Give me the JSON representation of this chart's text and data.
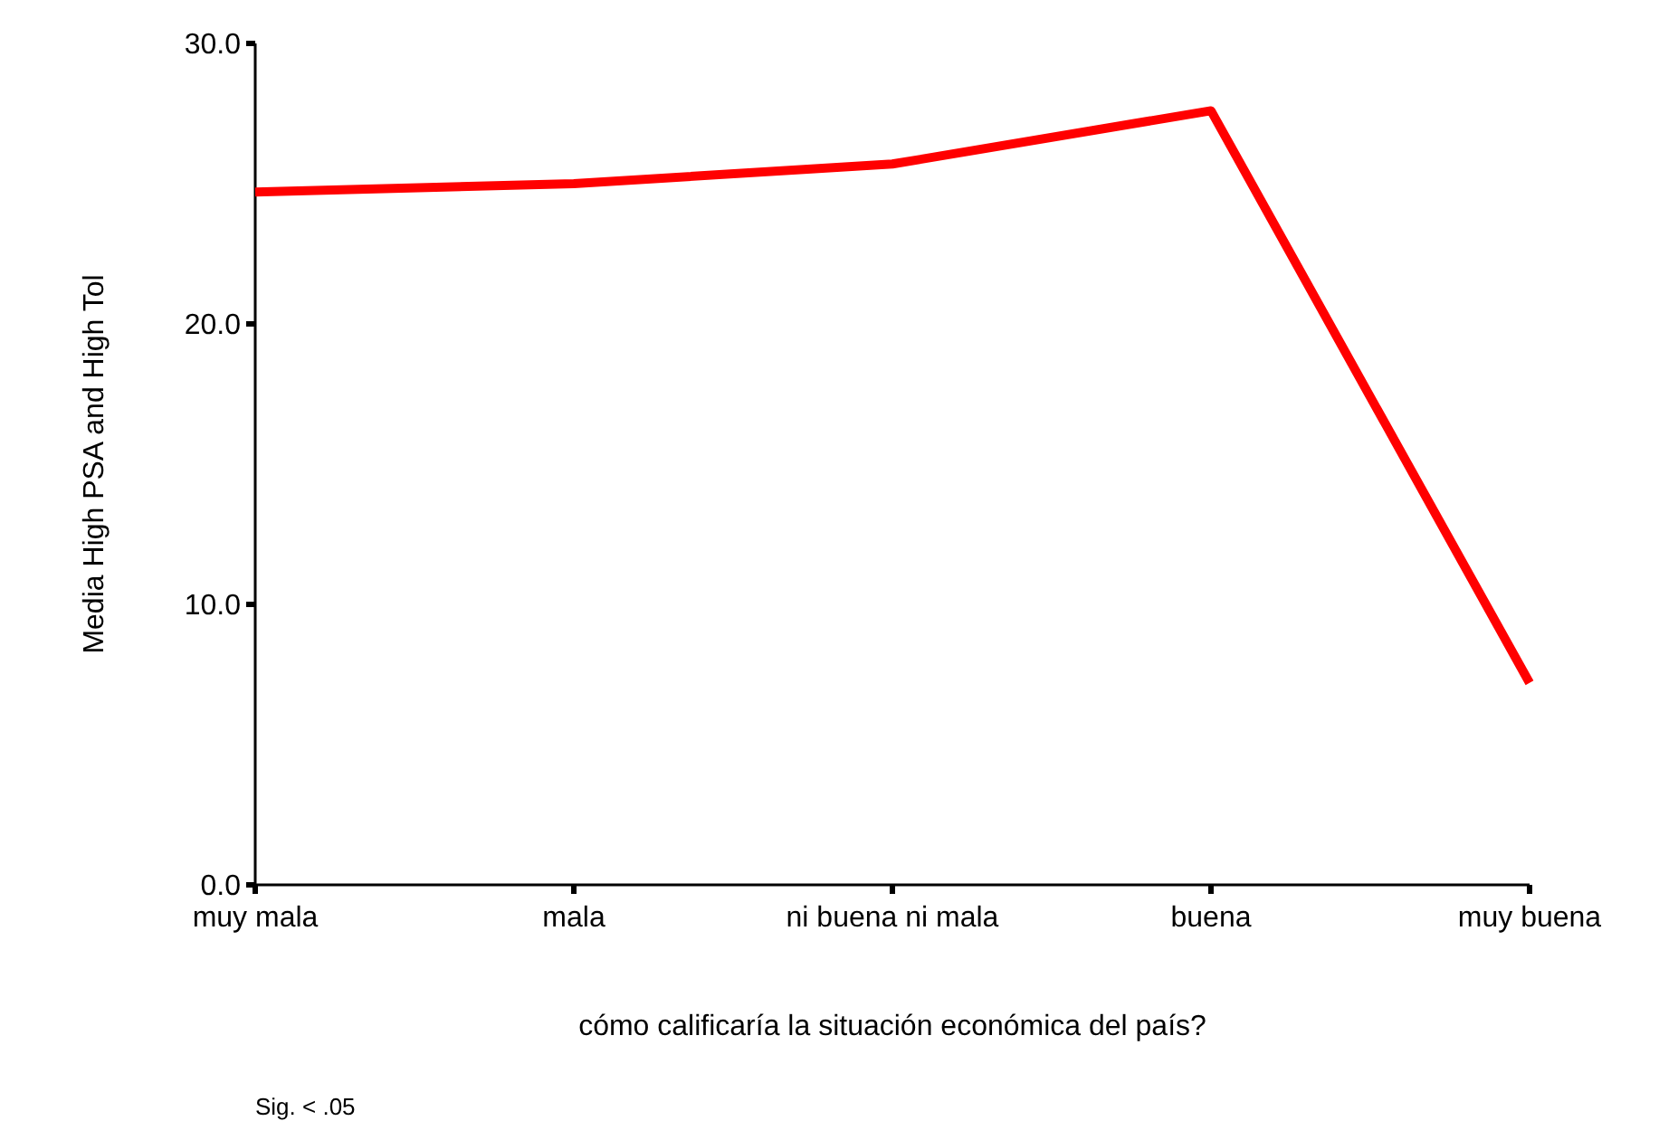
{
  "chart_data": {
    "type": "line",
    "xlabel": "cómo calificaría la situación económica del país?",
    "ylabel": "Media High PSA and High Tol",
    "categories": [
      "muy mala",
      "mala",
      "ni buena ni mala",
      "buena",
      "muy buena"
    ],
    "series": [
      {
        "color": "#ff0000",
        "values": [
          24.7,
          25.0,
          25.7,
          27.6,
          7.2
        ]
      }
    ],
    "ylim": [
      0,
      30
    ],
    "yticks": [
      {
        "value": 0,
        "label": "0.0"
      },
      {
        "value": 10,
        "label": "10.0"
      },
      {
        "value": 20,
        "label": "20.0"
      },
      {
        "value": 30,
        "label": "30.0"
      }
    ],
    "grid": false,
    "marker": "none",
    "line_style": "solid",
    "annotations": [
      "Sig. < .05"
    ]
  }
}
